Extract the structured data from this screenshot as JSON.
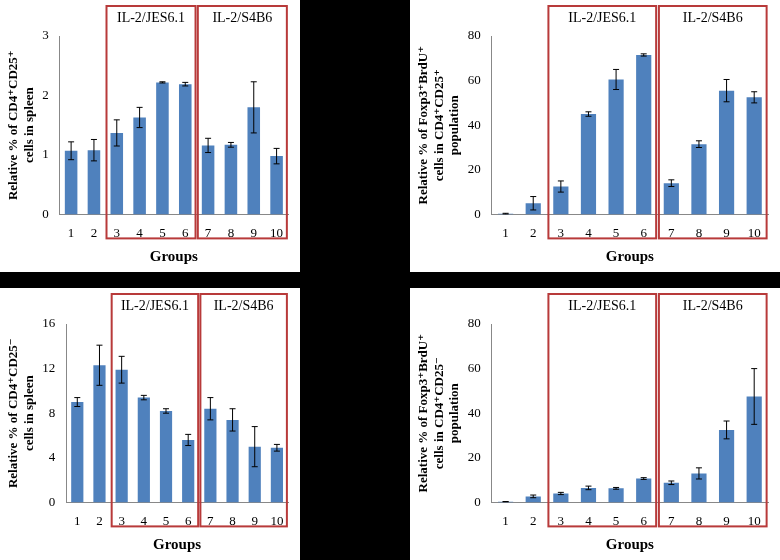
{
  "chart_data": [
    {
      "type": "bar",
      "x_label": "Groups",
      "y_label": [
        "Relative % of CD4⁺CD25⁺",
        "cells in spleen"
      ],
      "categories": [
        "1",
        "2",
        "3",
        "4",
        "5",
        "6",
        "7",
        "8",
        "9",
        "10"
      ],
      "values": [
        1.07,
        1.08,
        1.37,
        1.63,
        2.22,
        2.19,
        1.16,
        1.17,
        1.8,
        0.98
      ],
      "errors": [
        0.15,
        0.18,
        0.22,
        0.17,
        0.01,
        0.03,
        0.12,
        0.04,
        0.43,
        0.13
      ],
      "color": "#4f81bd",
      "ylim": [
        0,
        3
      ],
      "yticks": [
        0,
        1,
        2,
        3
      ],
      "grid": false,
      "annotations": [
        {
          "text": "IL-2/JES6.1",
          "from": "3",
          "to": "6",
          "color": "#b83a3a"
        },
        {
          "text": "IL-2/S4B6",
          "from": "7",
          "to": "10",
          "color": "#b83a3a"
        }
      ]
    },
    {
      "type": "bar",
      "x_label": "Groups",
      "y_label": [
        "Relative % of Foxp3⁺BrdU⁺",
        "cells in CD4⁺CD25⁺",
        "population"
      ],
      "categories": [
        "1",
        "2",
        "3",
        "4",
        "5",
        "6",
        "7",
        "8",
        "9",
        "10"
      ],
      "values": [
        0.3,
        5,
        12.5,
        45,
        60.5,
        71.5,
        14,
        31.5,
        55.5,
        52.5
      ],
      "errors": [
        0.2,
        3,
        2.5,
        1,
        4.5,
        0.5,
        1.5,
        1.5,
        5,
        2.5
      ],
      "color": "#4f81bd",
      "ylim": [
        0,
        80
      ],
      "yticks": [
        0,
        20,
        40,
        60,
        80
      ],
      "grid": false,
      "annotations": [
        {
          "text": "IL-2/JES6.1",
          "from": "3",
          "to": "6",
          "color": "#b83a3a"
        },
        {
          "text": "IL-2/S4B6",
          "from": "7",
          "to": "10",
          "color": "#b83a3a"
        }
      ]
    },
    {
      "type": "bar",
      "x_label": "Groups",
      "y_label": [
        "Relative % of CD4⁺CD25⁻",
        "cells in spleen"
      ],
      "categories": [
        "1",
        "2",
        "3",
        "4",
        "5",
        "6",
        "7",
        "8",
        "9",
        "10"
      ],
      "values": [
        9.0,
        12.3,
        11.9,
        9.4,
        8.2,
        5.6,
        8.4,
        7.4,
        5.0,
        4.9
      ],
      "errors": [
        0.4,
        1.8,
        1.2,
        0.2,
        0.2,
        0.5,
        1.0,
        1.0,
        1.8,
        0.3
      ],
      "color": "#4f81bd",
      "ylim": [
        0,
        16
      ],
      "yticks": [
        0,
        4,
        8,
        12,
        16
      ],
      "grid": false,
      "annotations": [
        {
          "text": "IL-2/JES6.1",
          "from": "3",
          "to": "6",
          "color": "#b83a3a"
        },
        {
          "text": "IL-2/S4B6",
          "from": "7",
          "to": "10",
          "color": "#b83a3a"
        }
      ]
    },
    {
      "type": "bar",
      "x_label": "Groups",
      "y_label": [
        "Relative % of Foxp3⁺BrdU⁺",
        "cells in CD4⁺CD25⁻",
        "population"
      ],
      "categories": [
        "1",
        "2",
        "3",
        "4",
        "5",
        "6",
        "7",
        "8",
        "9",
        "10"
      ],
      "values": [
        0.3,
        2.7,
        4,
        6.5,
        6.3,
        10.7,
        8.8,
        13,
        32.5,
        47.5
      ],
      "errors": [
        0.1,
        0.6,
        0.5,
        0.8,
        0.4,
        0.4,
        0.8,
        2.5,
        4,
        12.5
      ],
      "color": "#4f81bd",
      "ylim": [
        0,
        80
      ],
      "yticks": [
        0,
        20,
        40,
        60,
        80
      ],
      "grid": false,
      "annotations": [
        {
          "text": "IL-2/JES6.1",
          "from": "3",
          "to": "6",
          "color": "#b83a3a"
        },
        {
          "text": "IL-2/S4B6",
          "from": "7",
          "to": "10",
          "color": "#b83a3a"
        }
      ]
    }
  ]
}
